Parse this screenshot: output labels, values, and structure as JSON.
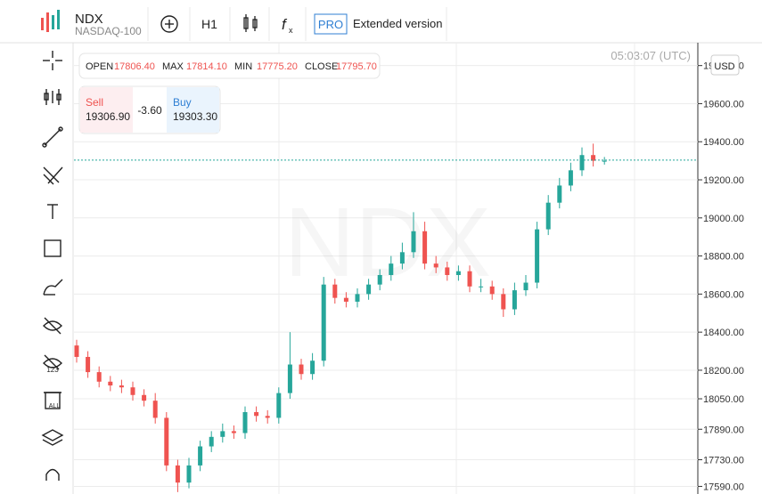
{
  "header": {
    "symbol": "NDX",
    "exchange": "NASDAQ-100",
    "interval": "H1",
    "pro": "PRO",
    "extended": "Extended version"
  },
  "toolbar": {
    "hide_numbers": "123",
    "delete_all": "ALL"
  },
  "ohlc": {
    "open_label": "OPEN",
    "open": "17806.40",
    "max_label": "MAX",
    "max": "17814.10",
    "min_label": "MIN",
    "min": "17775.20",
    "close_label": "CLOSE",
    "close": "17795.70"
  },
  "quote": {
    "sell_label": "Sell",
    "sell": "19306.90",
    "spread": "-3.60",
    "buy_label": "Buy",
    "buy": "19303.30"
  },
  "timestamp": "05:03:07 (UTC)",
  "currency": "USD",
  "chart_data": {
    "type": "candlestick",
    "watermark": "NDX",
    "open": [
      18330,
      18270,
      18190,
      18140,
      18120,
      18110,
      18070,
      18040,
      17950,
      17700,
      17610,
      17700,
      17800,
      17850,
      17880,
      17870,
      17980,
      17960,
      17950,
      18080,
      18230,
      18180,
      18250,
      18650,
      18580,
      18560,
      18600,
      18650,
      18700,
      18760,
      18820,
      18930,
      18760,
      18740,
      18700,
      18720,
      18640,
      18640,
      18600,
      18520,
      18620,
      18660,
      18940,
      19080,
      19170,
      19250,
      19330,
      19300
    ],
    "high": [
      18360,
      18300,
      18220,
      18170,
      18150,
      18140,
      18100,
      18080,
      17980,
      17730,
      17740,
      17830,
      17880,
      17920,
      17910,
      18010,
      18010,
      17990,
      18110,
      18400,
      18260,
      18290,
      18690,
      18680,
      18610,
      18630,
      18680,
      18730,
      18800,
      18870,
      19030,
      18980,
      18800,
      18770,
      18750,
      18750,
      18680,
      18670,
      18630,
      18660,
      18700,
      18980,
      19120,
      19210,
      19290,
      19370,
      19390,
      19320
    ],
    "low": [
      18240,
      18160,
      18110,
      18090,
      18080,
      18040,
      18010,
      17920,
      17670,
      17560,
      17580,
      17670,
      17770,
      17820,
      17840,
      17840,
      17930,
      17920,
      17920,
      18050,
      18150,
      18150,
      18220,
      18550,
      18530,
      18530,
      18570,
      18620,
      18670,
      18730,
      18790,
      18730,
      18710,
      18670,
      18670,
      18610,
      18610,
      18570,
      18480,
      18490,
      18590,
      18630,
      18910,
      19050,
      19140,
      19220,
      19270,
      19280
    ],
    "close": [
      18270,
      18190,
      18140,
      18120,
      18110,
      18070,
      18040,
      17950,
      17700,
      17610,
      17700,
      17800,
      17850,
      17880,
      17870,
      17980,
      17960,
      17950,
      18080,
      18230,
      18180,
      18250,
      18650,
      18580,
      18560,
      18600,
      18650,
      18700,
      18760,
      18820,
      18930,
      18760,
      18740,
      18700,
      18720,
      18640,
      18640,
      18600,
      18520,
      18620,
      18660,
      18940,
      19080,
      19170,
      19250,
      19330,
      19300,
      19300
    ],
    "up_color": "#26a69a",
    "down_color": "#ef5350",
    "last_price": 19303.3,
    "ylim": [
      17550,
      19920
    ],
    "yticks": [
      {
        "value": 17590,
        "label": "17590.00"
      },
      {
        "value": 17730,
        "label": "17730.00"
      },
      {
        "value": 17890,
        "label": "17890.00"
      },
      {
        "value": 18050,
        "label": "18050.00"
      },
      {
        "value": 18200,
        "label": "18200.00"
      },
      {
        "value": 18400,
        "label": "18400.00"
      },
      {
        "value": 18600,
        "label": "18600.00"
      },
      {
        "value": 18800,
        "label": "18800.00"
      },
      {
        "value": 19000,
        "label": "19000.00"
      },
      {
        "value": 19200,
        "label": "19200.00"
      },
      {
        "value": 19400,
        "label": "19400.00"
      },
      {
        "value": 19600,
        "label": "19600.00"
      },
      {
        "value": 19800,
        "label": "19800.00"
      }
    ],
    "grid": true
  }
}
